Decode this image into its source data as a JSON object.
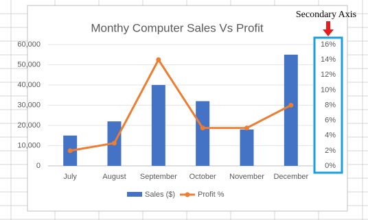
{
  "chart_data": {
    "type": "bar-line",
    "title": "Monthy Computer Sales Vs Profit",
    "annotation": "Secondary Axis",
    "categories": [
      "July",
      "August",
      "September",
      "October",
      "November",
      "December"
    ],
    "series": [
      {
        "name": "Sales ($)",
        "type": "bar",
        "color": "#4472c4",
        "values": [
          15000,
          22000,
          40000,
          32000,
          18000,
          55000
        ]
      },
      {
        "name": "Profit %",
        "type": "line",
        "axis": "y2",
        "color": "#ed7d31",
        "values": [
          2,
          3,
          14,
          5,
          5,
          8
        ]
      }
    ],
    "ylim": [
      0,
      60000
    ],
    "yticks": [
      0,
      {
        "value": 10000,
        "label": "10,000"
      },
      {
        "value": 20000,
        "label": "20,000"
      },
      {
        "value": 30000,
        "label": "30,000"
      },
      {
        "value": 40000,
        "label": "40,000"
      },
      {
        "value": 50000,
        "label": "50,000"
      },
      {
        "value": 60000,
        "label": "60,000"
      }
    ],
    "y2lim": [
      0,
      16
    ],
    "y2ticks": [
      {
        "value": 0,
        "label": "0%"
      },
      {
        "value": 2,
        "label": "2%"
      },
      {
        "value": 4,
        "label": "4%"
      },
      {
        "value": 6,
        "label": "6%"
      },
      {
        "value": 8,
        "label": "8%"
      },
      {
        "value": 10,
        "label": "10%"
      },
      {
        "value": 12,
        "label": "12%"
      },
      {
        "value": 14,
        "label": "14%"
      },
      {
        "value": 16,
        "label": "16%"
      }
    ],
    "grid": true,
    "legend": "bottom"
  }
}
